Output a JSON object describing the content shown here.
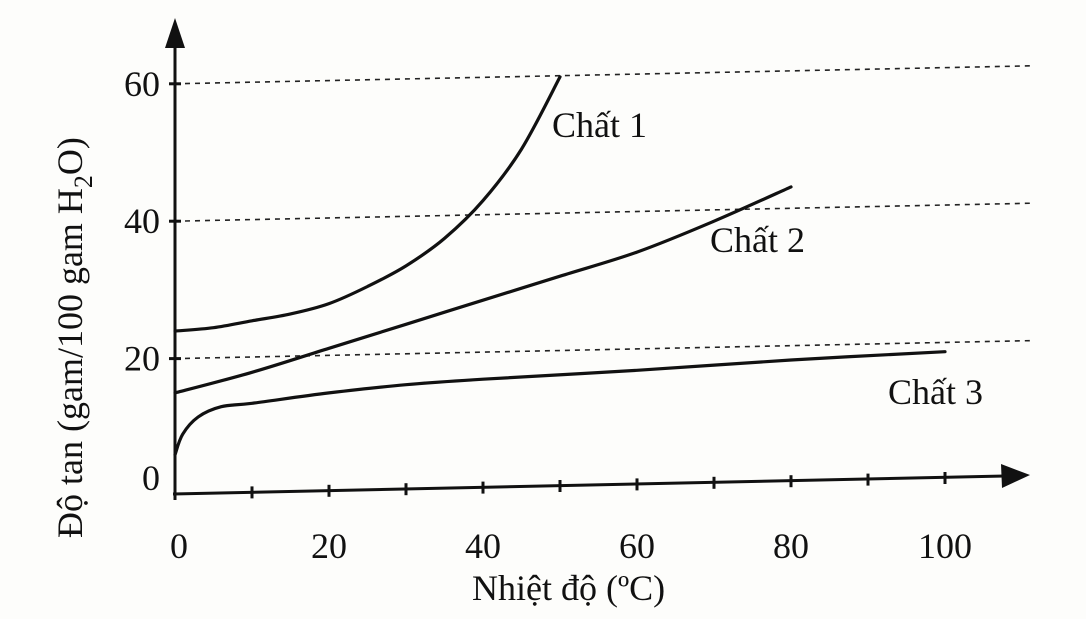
{
  "chart_data": {
    "type": "line",
    "xlabel": "Nhiệt độ  (ºC)",
    "ylabel_main": "Độ tan  (gam/100 gam H",
    "ylabel_sub": "2",
    "ylabel_end": "O)",
    "xlim": [
      0,
      110
    ],
    "ylim": [
      0,
      64
    ],
    "x_ticks": [
      0,
      20,
      40,
      60,
      80,
      100
    ],
    "x_minor_ticks": [
      10,
      30,
      50,
      70,
      90
    ],
    "y_ticks": [
      0,
      20,
      40,
      60
    ],
    "grid_y": [
      20,
      40,
      60
    ],
    "grid": "dashed horizontal",
    "series": [
      {
        "name": "Chất 1",
        "x": [
          0,
          5,
          10,
          15,
          20,
          25,
          30,
          35,
          40,
          45,
          50
        ],
        "y": [
          24,
          24.5,
          25.5,
          26.5,
          28,
          30.5,
          33.5,
          37.5,
          43,
          50.5,
          61
        ]
      },
      {
        "name": "Chất 2",
        "x": [
          0,
          10,
          20,
          30,
          40,
          50,
          60,
          70,
          80
        ],
        "y": [
          15,
          18,
          21.5,
          25,
          28.5,
          32,
          35.5,
          40,
          45
        ]
      },
      {
        "name": "Chất 3",
        "x": [
          0,
          1,
          3,
          6,
          10,
          20,
          30,
          40,
          60,
          80,
          100
        ],
        "y": [
          6,
          9,
          11.5,
          13,
          13.5,
          15,
          16.2,
          17,
          18.3,
          19.8,
          21
        ]
      }
    ]
  }
}
